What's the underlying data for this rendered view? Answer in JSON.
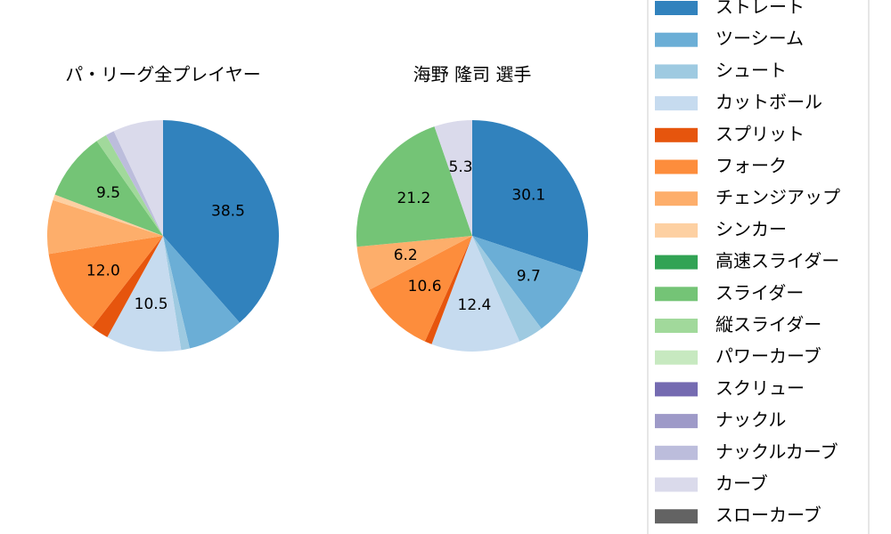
{
  "chart_data": [
    {
      "type": "pie",
      "title": "パ・リーグ全プレイヤー",
      "values": [
        38.5,
        7.8,
        1.2,
        10.5,
        2.5,
        12.0,
        7.5,
        0.8,
        0,
        9.5,
        1.5,
        0,
        0,
        0,
        1.2,
        7.0,
        0
      ],
      "value_labels": [
        "38.5",
        null,
        null,
        "10.5",
        null,
        "12.0",
        null,
        null,
        null,
        "9.5",
        null,
        null,
        null,
        null,
        null,
        null,
        null
      ]
    },
    {
      "type": "pie",
      "title": "海野 隆司  選手",
      "values": [
        30.1,
        9.7,
        3.5,
        12.4,
        1.0,
        10.6,
        6.2,
        0,
        0,
        21.2,
        0,
        0,
        0,
        0,
        0,
        5.3,
        0
      ],
      "value_labels": [
        "30.1",
        "9.7",
        null,
        "12.4",
        null,
        "10.6",
        "6.2",
        null,
        null,
        "21.2",
        null,
        null,
        null,
        null,
        null,
        "5.3",
        null
      ]
    }
  ],
  "legend": {
    "labels": [
      "ストレート",
      "ツーシーム",
      "シュート",
      "カットボール",
      "スプリット",
      "フォーク",
      "チェンジアップ",
      "シンカー",
      "高速スライダー",
      "スライダー",
      "縦スライダー",
      "パワーカーブ",
      "スクリュー",
      "ナックル",
      "ナックルカーブ",
      "カーブ",
      "スローカーブ"
    ],
    "colors": [
      "#3182bd",
      "#6baed6",
      "#9ecae1",
      "#c6dbef",
      "#e6550d",
      "#fd8d3c",
      "#fdae6b",
      "#fdd0a2",
      "#31a354",
      "#74c476",
      "#a1d99b",
      "#c7e9c0",
      "#756bb1",
      "#9e9ac8",
      "#bcbddc",
      "#dadaeb",
      "#636363"
    ]
  }
}
